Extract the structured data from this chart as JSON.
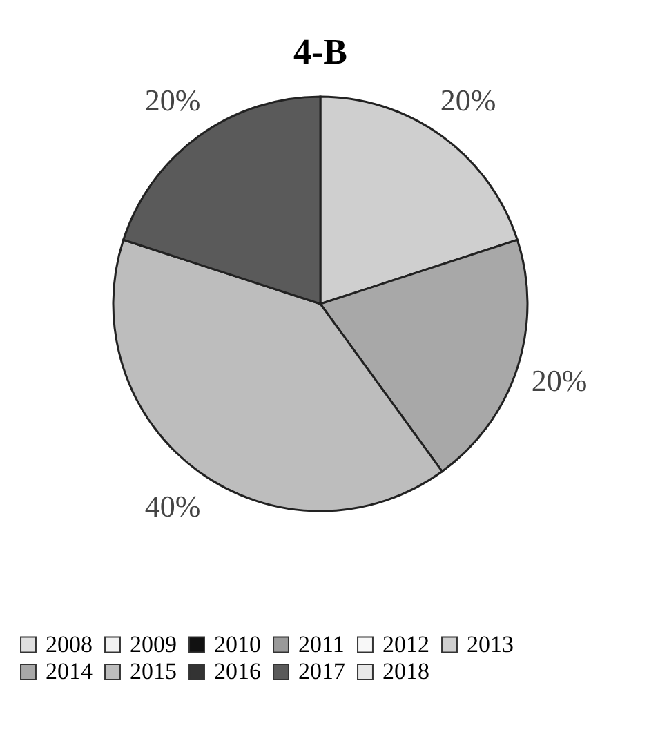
{
  "chart_data": {
    "type": "pie",
    "title": "4-B",
    "categories": [
      "2008",
      "2009",
      "2010",
      "2011",
      "2012",
      "2013",
      "2014",
      "2015",
      "2016",
      "2017",
      "2018"
    ],
    "values": [
      0,
      0,
      0,
      0,
      0,
      20,
      20,
      40,
      0,
      20,
      0
    ],
    "value_labels": [
      null,
      null,
      null,
      null,
      null,
      "20%",
      "20%",
      "40%",
      null,
      "20%",
      null
    ],
    "colors": [
      "#e0e0e0",
      "#f2f2f2",
      "#111111",
      "#9a9a9a",
      "#f8f8f8",
      "#cfcfcf",
      "#a8a8a8",
      "#bdbdbd",
      "#333333",
      "#5a5a5a",
      "#e8e8e8"
    ],
    "legend": "bottom"
  }
}
